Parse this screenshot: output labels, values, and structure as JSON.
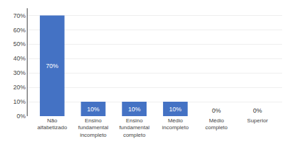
{
  "chart_data": {
    "type": "bar",
    "categories": [
      "Não\nalfabetizado",
      "Ensino\nfundamental\nincompleto",
      "Ensino\nfundamental\ncompleto",
      "Médio\nincompleto",
      "Médio\ncompleto",
      "Superior"
    ],
    "values": [
      70,
      10,
      10,
      10,
      0,
      0
    ],
    "value_labels": [
      "70%",
      "10%",
      "10%",
      "10%",
      "0%",
      "0%"
    ],
    "color": "#4472c4",
    "ylim": [
      0,
      75
    ],
    "yticks": [
      {
        "value": 0,
        "label": "0%"
      },
      {
        "value": 10,
        "label": "10%"
      },
      {
        "value": 20,
        "label": "20%"
      },
      {
        "value": 30,
        "label": "30%"
      },
      {
        "value": 40,
        "label": "40%"
      },
      {
        "value": 50,
        "label": "50%"
      },
      {
        "value": 60,
        "label": "60%"
      },
      {
        "value": 70,
        "label": "70%"
      }
    ],
    "grid": true,
    "data_labels": true
  }
}
